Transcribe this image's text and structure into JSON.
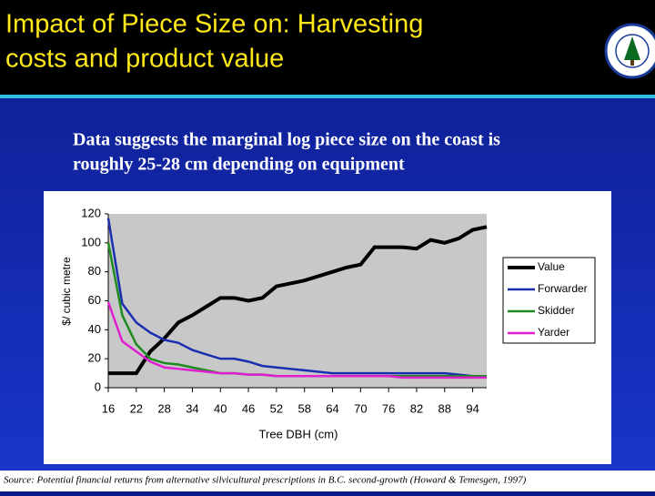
{
  "header": {
    "title_lines": [
      "Impact of Piece Size on:  Harvesting",
      "costs and product value"
    ]
  },
  "subtitle_lines": [
    "Data suggests the marginal log piece size  on the coast is",
    "roughly 25-28  cm  depending on equipment"
  ],
  "source": "Source:  Potential financial returns from alternative silvicultural prescriptions in B.C. second-growth (Howard & Temesgen, 1997)",
  "chart_data": {
    "type": "line",
    "x_label": "Tree DBH  (cm)",
    "y_label": "$/ cubic metre",
    "x": [
      16,
      19,
      22,
      25,
      28,
      31,
      34,
      37,
      40,
      43,
      46,
      49,
      52,
      55,
      58,
      61,
      64,
      67,
      70,
      73,
      76,
      79,
      82,
      85,
      88,
      91,
      94,
      97
    ],
    "series": [
      {
        "name": "Value",
        "color": "#000000",
        "values": [
          10,
          10,
          10,
          25,
          34,
          45,
          50,
          56,
          62,
          62,
          60,
          62,
          70,
          72,
          74,
          77,
          80,
          83,
          85,
          97,
          97,
          97,
          96,
          102,
          100,
          103,
          109,
          111
        ]
      },
      {
        "name": "Forwarder",
        "color": "#1a2fb0",
        "values": [
          117,
          58,
          45,
          38,
          33,
          31,
          26,
          23,
          20,
          20,
          18,
          15,
          14,
          13,
          12,
          11,
          10,
          10,
          10,
          10,
          10,
          10,
          10,
          10,
          10,
          9,
          8,
          8
        ]
      },
      {
        "name": "Skidder",
        "color": "#1f8a1f",
        "values": [
          100,
          50,
          30,
          20,
          17,
          16,
          14,
          12,
          10,
          10,
          9,
          9,
          8,
          8,
          8,
          8,
          8,
          8,
          8,
          8,
          8,
          8,
          8,
          8,
          8,
          8,
          8,
          8
        ]
      },
      {
        "name": "Yarder",
        "color": "#e020d0",
        "values": [
          59,
          32,
          25,
          18,
          14,
          13,
          12,
          11,
          10,
          10,
          9,
          9,
          8,
          8,
          8,
          8,
          8,
          8,
          8,
          8,
          8,
          7,
          7,
          7,
          7,
          7,
          7,
          7
        ]
      }
    ],
    "xlim": [
      16,
      97
    ],
    "ylim": [
      0,
      120
    ],
    "xticks": [
      16,
      22,
      28,
      34,
      40,
      46,
      52,
      58,
      64,
      70,
      76,
      82,
      88,
      94
    ],
    "yticks": [
      0,
      20,
      40,
      60,
      80,
      100,
      120
    ],
    "legend": "right"
  }
}
